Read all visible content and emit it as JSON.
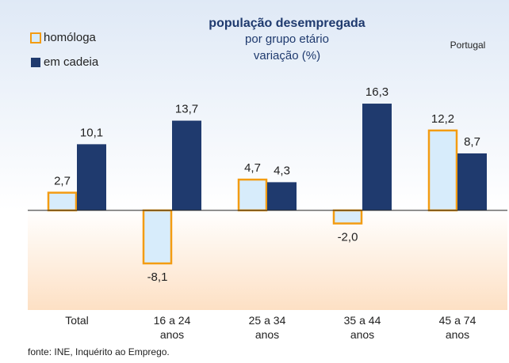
{
  "chart_data": {
    "type": "bar",
    "title": "população desempregada",
    "subtitle": [
      "por grupo etário",
      "variação (%)"
    ],
    "annotation": "Portugal",
    "source": "fonte: INE, Inquérito ao Emprego.",
    "categories": [
      "Total",
      "16 a 24 anos",
      "25 a 34 anos",
      "35 a 44 anos",
      "45 a 74 anos"
    ],
    "series": [
      {
        "name": "homóloga",
        "color": "#d7ecfb",
        "edge_color": "#f39c12",
        "values": [
          2.7,
          -8.1,
          4.7,
          -2.0,
          12.2
        ],
        "value_labels": [
          "2,7",
          "-8,1",
          "4,7",
          "-2,0",
          "12,2"
        ]
      },
      {
        "name": "em cadeia",
        "color": "#1f3a6e",
        "values": [
          10.1,
          13.7,
          4.3,
          16.3,
          8.7
        ],
        "value_labels": [
          "10,1",
          "13,7",
          "4,3",
          "16,3",
          "8,7"
        ]
      }
    ]
  }
}
